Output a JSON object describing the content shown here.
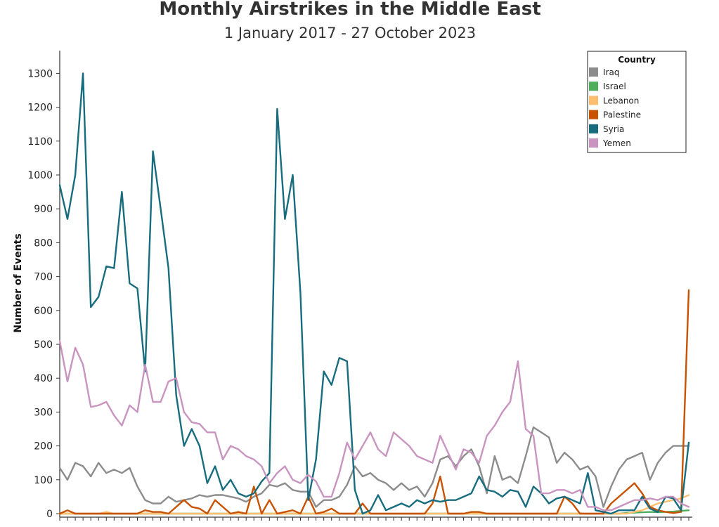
{
  "chart_data": {
    "type": "line",
    "title": "Monthly Airstrikes in the Middle East",
    "subtitle": "1 January 2017 - 27 October 2023",
    "xlabel": "",
    "ylabel": "Number of Events",
    "ylim": [
      0,
      1350
    ],
    "yticks": [
      0,
      100,
      200,
      300,
      400,
      500,
      600,
      700,
      800,
      900,
      1000,
      1100,
      1200,
      1300
    ],
    "legend": {
      "title": "Country",
      "position": "top-right"
    },
    "x": [
      1,
      2,
      3,
      4,
      5,
      6,
      7,
      8,
      9,
      10,
      11,
      12,
      13,
      14,
      15,
      16,
      17,
      18,
      19,
      20,
      21,
      22,
      23,
      24,
      25,
      26,
      27,
      28,
      29,
      30,
      31,
      32,
      33,
      34,
      35,
      36,
      37,
      38,
      39,
      40,
      41,
      42,
      43,
      44,
      45,
      46,
      47,
      48,
      49,
      50,
      51,
      52,
      53,
      54,
      55,
      56,
      57,
      58,
      59,
      60,
      61,
      62,
      63,
      64,
      65,
      66,
      67,
      68,
      69,
      70,
      71,
      72,
      73,
      74,
      75,
      76,
      77,
      78,
      79,
      80,
      81,
      82
    ],
    "series": [
      {
        "name": "Iraq",
        "color": "#8c8c8c",
        "values": [
          135,
          100,
          150,
          140,
          110,
          150,
          120,
          130,
          120,
          135,
          80,
          40,
          30,
          30,
          50,
          35,
          40,
          45,
          55,
          50,
          55,
          55,
          50,
          45,
          35,
          50,
          60,
          85,
          80,
          90,
          70,
          65,
          65,
          20,
          40,
          40,
          50,
          85,
          140,
          110,
          120,
          100,
          90,
          70,
          90,
          70,
          80,
          50,
          90,
          160,
          170,
          140,
          170,
          190,
          140,
          60,
          170,
          100,
          110,
          90,
          170,
          255,
          240,
          225,
          150,
          180,
          160,
          130,
          140,
          110,
          20,
          80,
          130,
          160,
          170,
          180,
          100,
          150,
          180,
          200,
          200,
          200
        ]
      },
      {
        "name": "Israel",
        "color": "#4fae5a",
        "values": [
          0,
          0,
          0,
          0,
          0,
          0,
          0,
          0,
          0,
          0,
          0,
          0,
          0,
          0,
          0,
          0,
          0,
          0,
          0,
          0,
          0,
          0,
          0,
          0,
          0,
          0,
          0,
          0,
          0,
          0,
          0,
          0,
          0,
          0,
          0,
          0,
          0,
          0,
          0,
          0,
          0,
          0,
          0,
          0,
          0,
          0,
          0,
          0,
          0,
          0,
          0,
          0,
          0,
          0,
          0,
          0,
          0,
          0,
          0,
          0,
          0,
          0,
          0,
          0,
          0,
          0,
          0,
          0,
          0,
          0,
          0,
          0,
          0,
          2,
          3,
          4,
          5,
          4,
          5,
          6,
          8,
          10
        ]
      },
      {
        "name": "Lebanon",
        "color": "#fdbf6f",
        "values": [
          0,
          0,
          0,
          0,
          0,
          0,
          5,
          0,
          0,
          0,
          0,
          0,
          0,
          0,
          0,
          0,
          0,
          0,
          0,
          0,
          0,
          0,
          0,
          0,
          0,
          0,
          0,
          0,
          0,
          0,
          0,
          0,
          0,
          0,
          0,
          0,
          0,
          0,
          0,
          0,
          0,
          0,
          0,
          0,
          0,
          0,
          0,
          0,
          0,
          0,
          0,
          0,
          0,
          0,
          0,
          0,
          0,
          0,
          0,
          0,
          0,
          0,
          0,
          0,
          0,
          0,
          0,
          0,
          0,
          0,
          0,
          0,
          0,
          0,
          5,
          10,
          20,
          30,
          35,
          40,
          45,
          55
        ]
      },
      {
        "name": "Palestine",
        "color": "#c85200",
        "values": [
          0,
          10,
          0,
          0,
          0,
          0,
          0,
          0,
          0,
          0,
          0,
          10,
          5,
          5,
          0,
          20,
          40,
          20,
          15,
          0,
          40,
          20,
          0,
          5,
          0,
          80,
          0,
          40,
          0,
          5,
          10,
          0,
          50,
          0,
          5,
          15,
          0,
          0,
          0,
          30,
          0,
          0,
          0,
          0,
          0,
          0,
          0,
          0,
          30,
          110,
          0,
          0,
          0,
          5,
          5,
          0,
          0,
          0,
          0,
          0,
          0,
          0,
          0,
          0,
          0,
          50,
          30,
          0,
          0,
          0,
          0,
          30,
          50,
          70,
          90,
          60,
          20,
          10,
          5,
          2,
          5,
          660
        ]
      },
      {
        "name": "Syria",
        "color": "#176d7e",
        "values": [
          970,
          870,
          1000,
          1300,
          610,
          640,
          730,
          725,
          950,
          680,
          665,
          420,
          1070,
          900,
          725,
          350,
          200,
          250,
          200,
          90,
          140,
          70,
          100,
          60,
          50,
          60,
          95,
          120,
          1195,
          870,
          1000,
          650,
          40,
          160,
          420,
          380,
          460,
          450,
          70,
          0,
          10,
          55,
          10,
          20,
          30,
          20,
          40,
          30,
          40,
          35,
          40,
          40,
          50,
          60,
          110,
          70,
          65,
          50,
          70,
          65,
          20,
          80,
          60,
          30,
          45,
          50,
          40,
          30,
          120,
          10,
          5,
          0,
          10,
          10,
          10,
          50,
          15,
          5,
          50,
          45,
          10,
          210
        ]
      },
      {
        "name": "Yemen",
        "color": "#c994c0",
        "values": [
          510,
          390,
          490,
          440,
          315,
          320,
          330,
          290,
          260,
          320,
          300,
          440,
          330,
          330,
          390,
          400,
          300,
          270,
          265,
          240,
          240,
          160,
          200,
          190,
          170,
          160,
          140,
          90,
          120,
          140,
          100,
          90,
          115,
          95,
          50,
          50,
          120,
          210,
          160,
          200,
          240,
          190,
          170,
          240,
          220,
          200,
          170,
          160,
          150,
          230,
          180,
          130,
          190,
          180,
          150,
          230,
          260,
          300,
          330,
          450,
          250,
          230,
          60,
          60,
          70,
          70,
          60,
          70,
          20,
          20,
          10,
          10,
          20,
          30,
          40,
          40,
          45,
          40,
          50,
          50,
          30,
          20
        ]
      }
    ]
  }
}
